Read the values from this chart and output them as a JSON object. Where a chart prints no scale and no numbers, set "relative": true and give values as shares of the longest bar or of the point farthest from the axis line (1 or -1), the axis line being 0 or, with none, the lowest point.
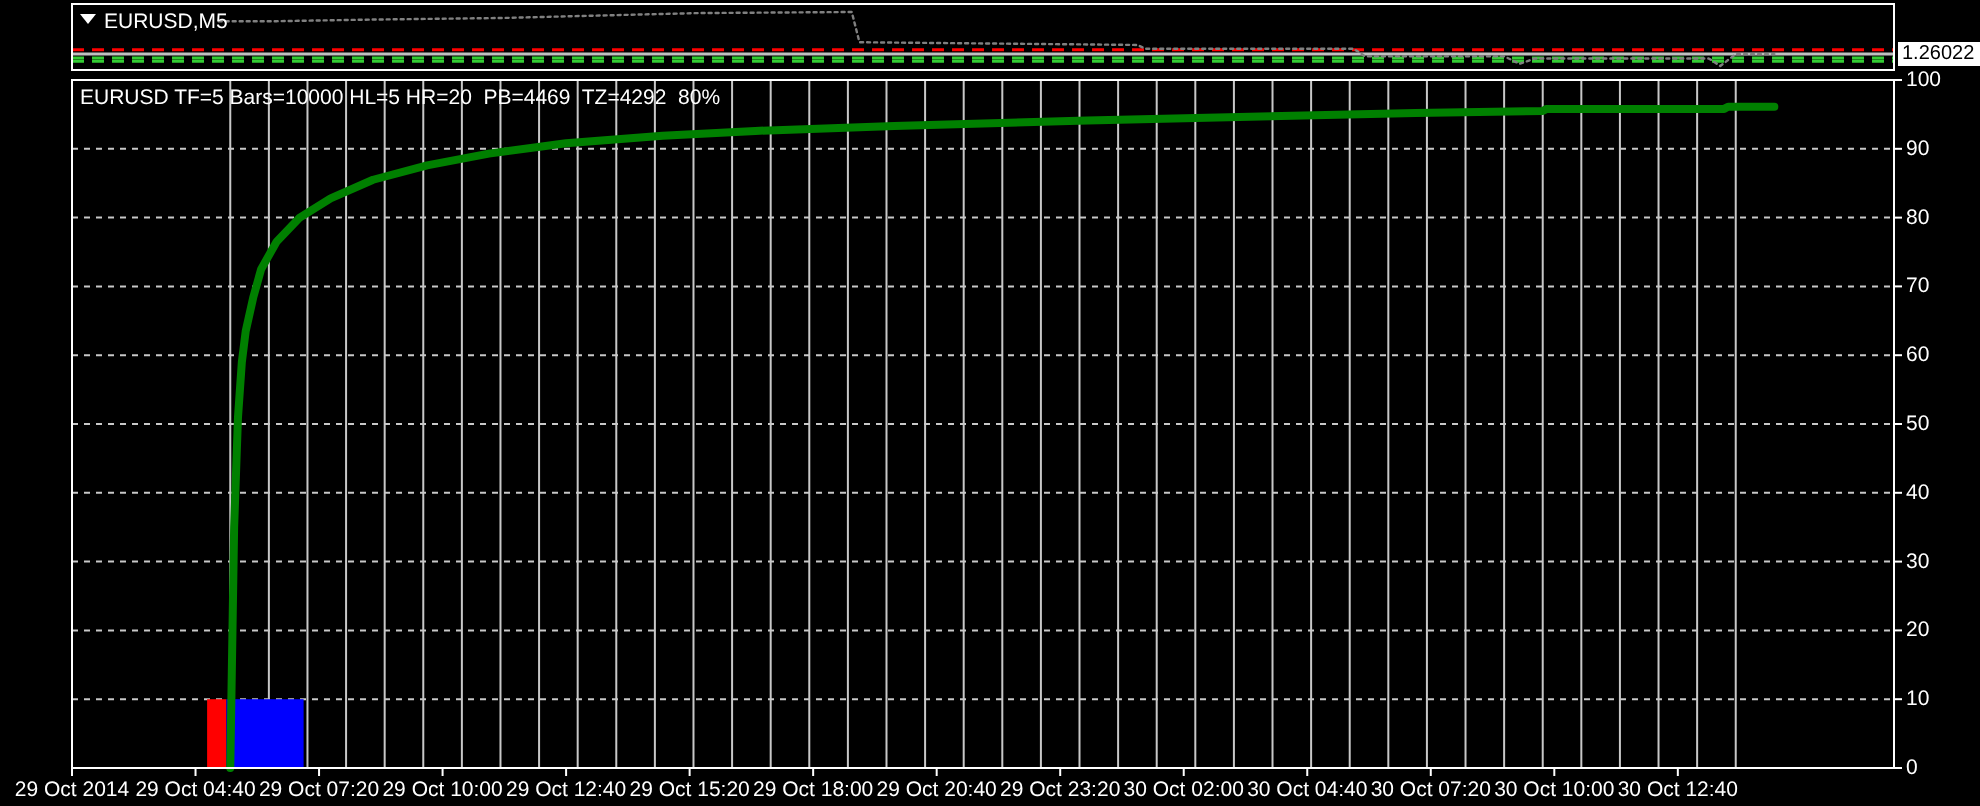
{
  "chart_data": [
    {
      "type": "line",
      "title": "EURUSD,M5",
      "relative": true,
      "xlim": [
        "2014-10-29T02:00",
        "2014-10-30T17:20"
      ],
      "annotations": [
        "1.26022"
      ],
      "series": [
        {
          "color": "#808080",
          "line_style": "dotted",
          "x": [
            "2014-10-29T05:10",
            "2014-10-29T06:25",
            "2014-10-29T08:30",
            "2014-10-29T11:20",
            "2014-10-29T15:30",
            "2014-10-29T18:50",
            "2014-10-29T19:00",
            "2014-10-30T01:00",
            "2014-10-30T01:10",
            "2014-10-30T05:40",
            "2014-10-30T05:55",
            "2014-10-30T08:55",
            "2014-10-30T09:15",
            "2014-10-30T09:35",
            "2014-10-30T13:20",
            "2014-10-30T13:35",
            "2014-10-30T13:55",
            "2014-10-30T14:45"
          ],
          "values": [
            0.83,
            0.83,
            0.86,
            0.89,
            0.98,
            1,
            0.44,
            0.39,
            0.32,
            0.32,
            0.18,
            0.18,
            0.04,
            0.14,
            0.14,
            0,
            0.22,
            0.22
          ]
        }
      ],
      "ref_lines": [
        {
          "axis": "y",
          "value": 0.3,
          "color": "#ff0000",
          "line_style": "dashed"
        },
        {
          "axis": "y",
          "value": 0.22,
          "color": "#c0c0c0"
        },
        {
          "axis": "y",
          "value": 0.15,
          "color": "#33cc33",
          "line_style": "dashed"
        },
        {
          "axis": "y",
          "value": 0.09,
          "color": "#33cc33",
          "line_style": "dashed"
        }
      ]
    },
    {
      "type": "line",
      "title": "EURUSD TF=5 Bars=10000 HL=5 HR=20  PB=4469  TZ=4292  80%",
      "xlim": [
        "2014-10-29T02:00",
        "2014-10-30T17:20"
      ],
      "xticks": [
        {
          "value": "2014-10-29T02:00",
          "label": "29 Oct 2014"
        },
        {
          "value": "2014-10-29T04:40",
          "label": "29 Oct 04:40"
        },
        {
          "value": "2014-10-29T07:20",
          "label": "29 Oct 07:20"
        },
        {
          "value": "2014-10-29T10:00",
          "label": "29 Oct 10:00"
        },
        {
          "value": "2014-10-29T12:40",
          "label": "29 Oct 12:40"
        },
        {
          "value": "2014-10-29T15:20",
          "label": "29 Oct 15:20"
        },
        {
          "value": "2014-10-29T18:00",
          "label": "29 Oct 18:00"
        },
        {
          "value": "2014-10-29T20:40",
          "label": "29 Oct 20:40"
        },
        {
          "value": "2014-10-29T23:20",
          "label": "29 Oct 23:20"
        },
        {
          "value": "2014-10-30T02:00",
          "label": "30 Oct 02:00"
        },
        {
          "value": "2014-10-30T04:40",
          "label": "30 Oct 04:40"
        },
        {
          "value": "2014-10-30T07:20",
          "label": "30 Oct 07:20"
        },
        {
          "value": "2014-10-30T10:00",
          "label": "30 Oct 10:00"
        },
        {
          "value": "2014-10-30T12:40",
          "label": "30 Oct 12:40"
        }
      ],
      "ylim": [
        0,
        100
      ],
      "yticks": [
        0,
        10,
        20,
        30,
        40,
        50,
        60,
        70,
        80,
        90,
        100
      ],
      "grid": "y",
      "series": [
        {
          "type": "histogram",
          "color": "#ff0000",
          "bins": [
            "2014-10-29T04:55",
            "2014-10-29T05:20"
          ],
          "values": [
            10
          ]
        },
        {
          "type": "histogram",
          "color": "#0000ff",
          "bins": [
            "2014-10-29T05:20",
            "2014-10-29T07:00"
          ],
          "values": [
            10
          ]
        },
        {
          "color": "#008000",
          "x": [
            "2014-10-29T05:25",
            "2014-10-29T05:30",
            "2014-10-29T05:35",
            "2014-10-29T05:40",
            "2014-10-29T05:45",
            "2014-10-29T05:55",
            "2014-10-29T06:05",
            "2014-10-29T06:25",
            "2014-10-29T06:55",
            "2014-10-29T07:35",
            "2014-10-29T08:30",
            "2014-10-29T09:40",
            "2014-10-29T11:00",
            "2014-10-29T12:40",
            "2014-10-29T14:45",
            "2014-10-29T16:45",
            "2014-10-29T19:45",
            "2014-10-29T23:55",
            "2014-10-30T03:40",
            "2014-10-30T07:00",
            "2014-10-30T09:45",
            "2014-10-30T09:50",
            "2014-10-30T13:40",
            "2014-10-30T13:45",
            "2014-10-30T14:45"
          ],
          "values": [
            0,
            35,
            51,
            59,
            63.5,
            68.5,
            72.5,
            76.5,
            80,
            82.8,
            85.5,
            87.6,
            89.3,
            90.8,
            91.9,
            92.6,
            93.3,
            94.1,
            94.7,
            95.2,
            95.5,
            95.8,
            95.8,
            96.1,
            96.1
          ]
        }
      ],
      "ref_lines": [
        {
          "axis": "x",
          "value": "2014-10-29T05:25",
          "color": "#c8c8c8"
        },
        {
          "axis": "x",
          "value": "2014-10-29T06:15",
          "color": "#c8c8c8"
        },
        {
          "axis": "x",
          "value": "2014-10-29T07:05",
          "color": "#c8c8c8"
        },
        {
          "axis": "x",
          "value": "2014-10-29T07:55",
          "color": "#c8c8c8"
        },
        {
          "axis": "x",
          "value": "2014-10-29T08:45",
          "color": "#c8c8c8"
        },
        {
          "axis": "x",
          "value": "2014-10-29T09:35",
          "color": "#c8c8c8"
        },
        {
          "axis": "x",
          "value": "2014-10-29T10:25",
          "color": "#c8c8c8"
        },
        {
          "axis": "x",
          "value": "2014-10-29T11:15",
          "color": "#c8c8c8"
        },
        {
          "axis": "x",
          "value": "2014-10-29T12:05",
          "color": "#c8c8c8"
        },
        {
          "axis": "x",
          "value": "2014-10-29T12:55",
          "color": "#c8c8c8"
        },
        {
          "axis": "x",
          "value": "2014-10-29T13:45",
          "color": "#c8c8c8"
        },
        {
          "axis": "x",
          "value": "2014-10-29T14:35",
          "color": "#c8c8c8"
        },
        {
          "axis": "x",
          "value": "2014-10-29T15:25",
          "color": "#c8c8c8"
        },
        {
          "axis": "x",
          "value": "2014-10-29T16:15",
          "color": "#c8c8c8"
        },
        {
          "axis": "x",
          "value": "2014-10-29T17:05",
          "color": "#c8c8c8"
        },
        {
          "axis": "x",
          "value": "2014-10-29T17:55",
          "color": "#c8c8c8"
        },
        {
          "axis": "x",
          "value": "2014-10-29T18:45",
          "color": "#c8c8c8"
        },
        {
          "axis": "x",
          "value": "2014-10-29T19:35",
          "color": "#c8c8c8"
        },
        {
          "axis": "x",
          "value": "2014-10-29T20:25",
          "color": "#c8c8c8"
        },
        {
          "axis": "x",
          "value": "2014-10-29T21:15",
          "color": "#c8c8c8"
        },
        {
          "axis": "x",
          "value": "2014-10-29T22:05",
          "color": "#c8c8c8"
        },
        {
          "axis": "x",
          "value": "2014-10-29T22:55",
          "color": "#c8c8c8"
        },
        {
          "axis": "x",
          "value": "2014-10-29T23:45",
          "color": "#c8c8c8"
        },
        {
          "axis": "x",
          "value": "2014-10-30T00:35",
          "color": "#c8c8c8"
        },
        {
          "axis": "x",
          "value": "2014-10-30T01:25",
          "color": "#c8c8c8"
        },
        {
          "axis": "x",
          "value": "2014-10-30T02:15",
          "color": "#c8c8c8"
        },
        {
          "axis": "x",
          "value": "2014-10-30T03:05",
          "color": "#c8c8c8"
        },
        {
          "axis": "x",
          "value": "2014-10-30T03:55",
          "color": "#c8c8c8"
        },
        {
          "axis": "x",
          "value": "2014-10-30T04:45",
          "color": "#c8c8c8"
        },
        {
          "axis": "x",
          "value": "2014-10-30T05:35",
          "color": "#c8c8c8"
        },
        {
          "axis": "x",
          "value": "2014-10-30T06:25",
          "color": "#c8c8c8"
        },
        {
          "axis": "x",
          "value": "2014-10-30T07:15",
          "color": "#c8c8c8"
        },
        {
          "axis": "x",
          "value": "2014-10-30T08:05",
          "color": "#c8c8c8"
        },
        {
          "axis": "x",
          "value": "2014-10-30T08:55",
          "color": "#c8c8c8"
        },
        {
          "axis": "x",
          "value": "2014-10-30T09:45",
          "color": "#c8c8c8"
        },
        {
          "axis": "x",
          "value": "2014-10-30T10:35",
          "color": "#c8c8c8"
        },
        {
          "axis": "x",
          "value": "2014-10-30T11:25",
          "color": "#c8c8c8"
        },
        {
          "axis": "x",
          "value": "2014-10-30T12:15",
          "color": "#c8c8c8"
        },
        {
          "axis": "x",
          "value": "2014-10-30T13:05",
          "color": "#c8c8c8"
        },
        {
          "axis": "x",
          "value": "2014-10-30T13:55",
          "color": "#c8c8c8"
        }
      ]
    }
  ]
}
